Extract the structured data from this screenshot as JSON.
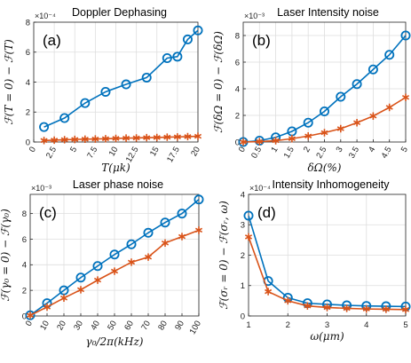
{
  "figure": {
    "blue": "#0072BD",
    "orange": "#D95319"
  },
  "chart_data": [
    {
      "id": "a",
      "type": "line",
      "title": "Doppler Dephasing",
      "panel_label": "(a)",
      "xlabel": "T(μk)",
      "ylabel": "ℱ(T = 0) − ℱ(T)",
      "exponent_label": "×10⁻⁴",
      "xlim": [
        0,
        20
      ],
      "ylim": [
        0,
        8
      ],
      "xticks": [
        "0",
        "2.5",
        "5",
        "7.5",
        "10",
        "12.5",
        "15",
        "17.5",
        "20"
      ],
      "yticks": [
        "0",
        "2",
        "4",
        "6",
        "8"
      ],
      "x_tick_rotation": 60,
      "x": [
        0,
        1.25,
        2.5,
        3.75,
        5,
        6.25,
        7.5,
        8.75,
        10,
        11.25,
        12.5,
        13.75,
        15,
        16.25,
        17.5,
        18.75,
        20
      ],
      "series": [
        {
          "marker": "circle",
          "color": "#0072BD",
          "x": [
            1.25,
            3.75,
            6.25,
            8.75,
            11.25,
            13.75,
            16.25,
            17.5,
            18.75,
            20
          ],
          "values": [
            1.0,
            1.6,
            2.6,
            3.35,
            3.85,
            4.3,
            5.6,
            5.7,
            6.85,
            7.45
          ]
        },
        {
          "marker": "star",
          "color": "#D95319",
          "x": [
            1.25,
            2.5,
            3.75,
            5,
            6.25,
            7.5,
            8.75,
            10,
            11.25,
            12.5,
            13.75,
            15,
            16.25,
            17.5,
            18.75,
            20
          ],
          "values": [
            0.1,
            0.12,
            0.15,
            0.17,
            0.19,
            0.2,
            0.22,
            0.24,
            0.26,
            0.27,
            0.29,
            0.3,
            0.32,
            0.34,
            0.36,
            0.38
          ]
        }
      ]
    },
    {
      "id": "b",
      "type": "line",
      "title": "Laser Intensity noise",
      "panel_label": "(b)",
      "xlabel": "δΩ(%)",
      "ylabel": "ℱ(δΩ = 0) − ℱ(δΩ)",
      "exponent_label": "×10⁻³",
      "xlim": [
        0,
        5
      ],
      "ylim": [
        0,
        9
      ],
      "xticks": [
        "0",
        "0.5",
        "1",
        "1.5",
        "2",
        "2.5",
        "3",
        "3.5",
        "4",
        "4.5",
        "5"
      ],
      "yticks": [
        "0",
        "2",
        "4",
        "6",
        "8"
      ],
      "x_tick_rotation": 60,
      "series": [
        {
          "marker": "circle",
          "color": "#0072BD",
          "x": [
            0,
            0.5,
            1,
            1.5,
            2,
            2.5,
            3,
            3.5,
            4,
            4.5,
            5
          ],
          "values": [
            0.0,
            0.1,
            0.35,
            0.8,
            1.45,
            2.3,
            3.4,
            4.35,
            5.45,
            6.55,
            8.0
          ]
        },
        {
          "marker": "star",
          "color": "#D95319",
          "x": [
            0,
            0.5,
            1,
            1.5,
            2,
            2.5,
            3,
            3.5,
            4,
            4.5,
            5
          ],
          "values": [
            0.0,
            0.03,
            0.1,
            0.25,
            0.45,
            0.7,
            1.0,
            1.45,
            1.95,
            2.6,
            3.35
          ]
        }
      ]
    },
    {
      "id": "c",
      "type": "line",
      "title": "Laser phase noise",
      "panel_label": "(c)",
      "xlabel": "γ₀/2π(kHz)",
      "ylabel": "ℱ(γ₀ = 0) − ℱ(γ₀)",
      "exponent_label": "×10⁻³",
      "xlim": [
        0,
        100
      ],
      "ylim": [
        0,
        9.5
      ],
      "xticks": [
        "0",
        "10",
        "20",
        "30",
        "40",
        "50",
        "60",
        "70",
        "80",
        "90",
        "100"
      ],
      "yticks": [
        "0",
        "2",
        "4",
        "6",
        "8"
      ],
      "x_tick_rotation": 60,
      "series": [
        {
          "marker": "circle",
          "color": "#0072BD",
          "x": [
            0,
            10,
            20,
            30,
            40,
            50,
            60,
            70,
            80,
            90,
            100
          ],
          "values": [
            0.05,
            1.0,
            2.0,
            3.0,
            3.9,
            4.8,
            5.6,
            6.5,
            7.3,
            8.0,
            9.1
          ]
        },
        {
          "marker": "star",
          "color": "#D95319",
          "x": [
            0,
            10,
            20,
            30,
            40,
            50,
            60,
            70,
            80,
            90,
            100
          ],
          "values": [
            0.05,
            0.7,
            1.4,
            2.05,
            2.8,
            3.5,
            4.2,
            4.6,
            5.7,
            6.2,
            6.7
          ]
        }
      ]
    },
    {
      "id": "d",
      "type": "line",
      "title": "Intensity Inhomogeneity",
      "panel_label": "(d)",
      "xlabel": "ω(μm)",
      "ylabel": "ℱ(σᵣ = 0) − ℱ(σᵣ, ω)",
      "exponent_label": "×10⁻⁴",
      "xlim": [
        1,
        5
      ],
      "ylim": [
        0,
        4
      ],
      "xticks": [
        "1",
        "2",
        "3",
        "4",
        "5"
      ],
      "yticks": [
        "0",
        "1",
        "2",
        "3",
        "4"
      ],
      "x_tick_rotation": 0,
      "series": [
        {
          "marker": "circle",
          "color": "#0072BD",
          "x": [
            1,
            1.5,
            2,
            2.5,
            3,
            3.5,
            4,
            4.5,
            5
          ],
          "values": [
            3.3,
            1.15,
            0.6,
            0.42,
            0.38,
            0.35,
            0.33,
            0.32,
            0.31
          ]
        },
        {
          "marker": "star",
          "color": "#D95319",
          "x": [
            1,
            1.5,
            2,
            2.5,
            3,
            3.5,
            4,
            4.5,
            5
          ],
          "values": [
            2.6,
            0.8,
            0.5,
            0.33,
            0.28,
            0.25,
            0.23,
            0.22,
            0.21
          ]
        }
      ]
    }
  ]
}
